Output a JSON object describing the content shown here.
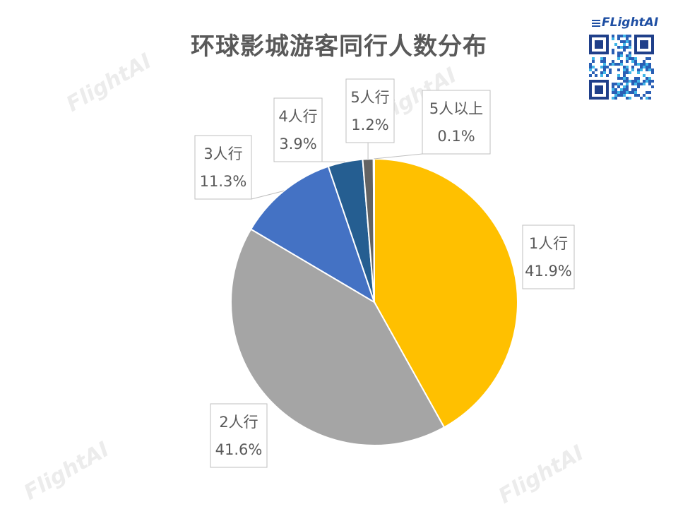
{
  "brand": {
    "logo_text": "FLightAI",
    "watermark_text": "FlightAI"
  },
  "chart_data": {
    "type": "pie",
    "title": "环球影城游客同行人数分布",
    "slices": [
      {
        "name": "1人行",
        "value": 41.9,
        "label": "41.9%",
        "color": "#FFC000"
      },
      {
        "name": "2人行",
        "value": 41.6,
        "label": "41.6%",
        "color": "#A5A5A5"
      },
      {
        "name": "3人行",
        "value": 11.3,
        "label": "11.3%",
        "color": "#4472C4"
      },
      {
        "name": "4人行",
        "value": 3.9,
        "label": "3.9%",
        "color": "#255E91"
      },
      {
        "name": "5人行",
        "value": 1.2,
        "label": "1.2%",
        "color": "#636363"
      },
      {
        "name": "5人以上",
        "value": 0.1,
        "label": "0.1%",
        "color": "#997300"
      }
    ],
    "start_angle": "12 o'clock",
    "direction": "clockwise",
    "legend": "none"
  }
}
